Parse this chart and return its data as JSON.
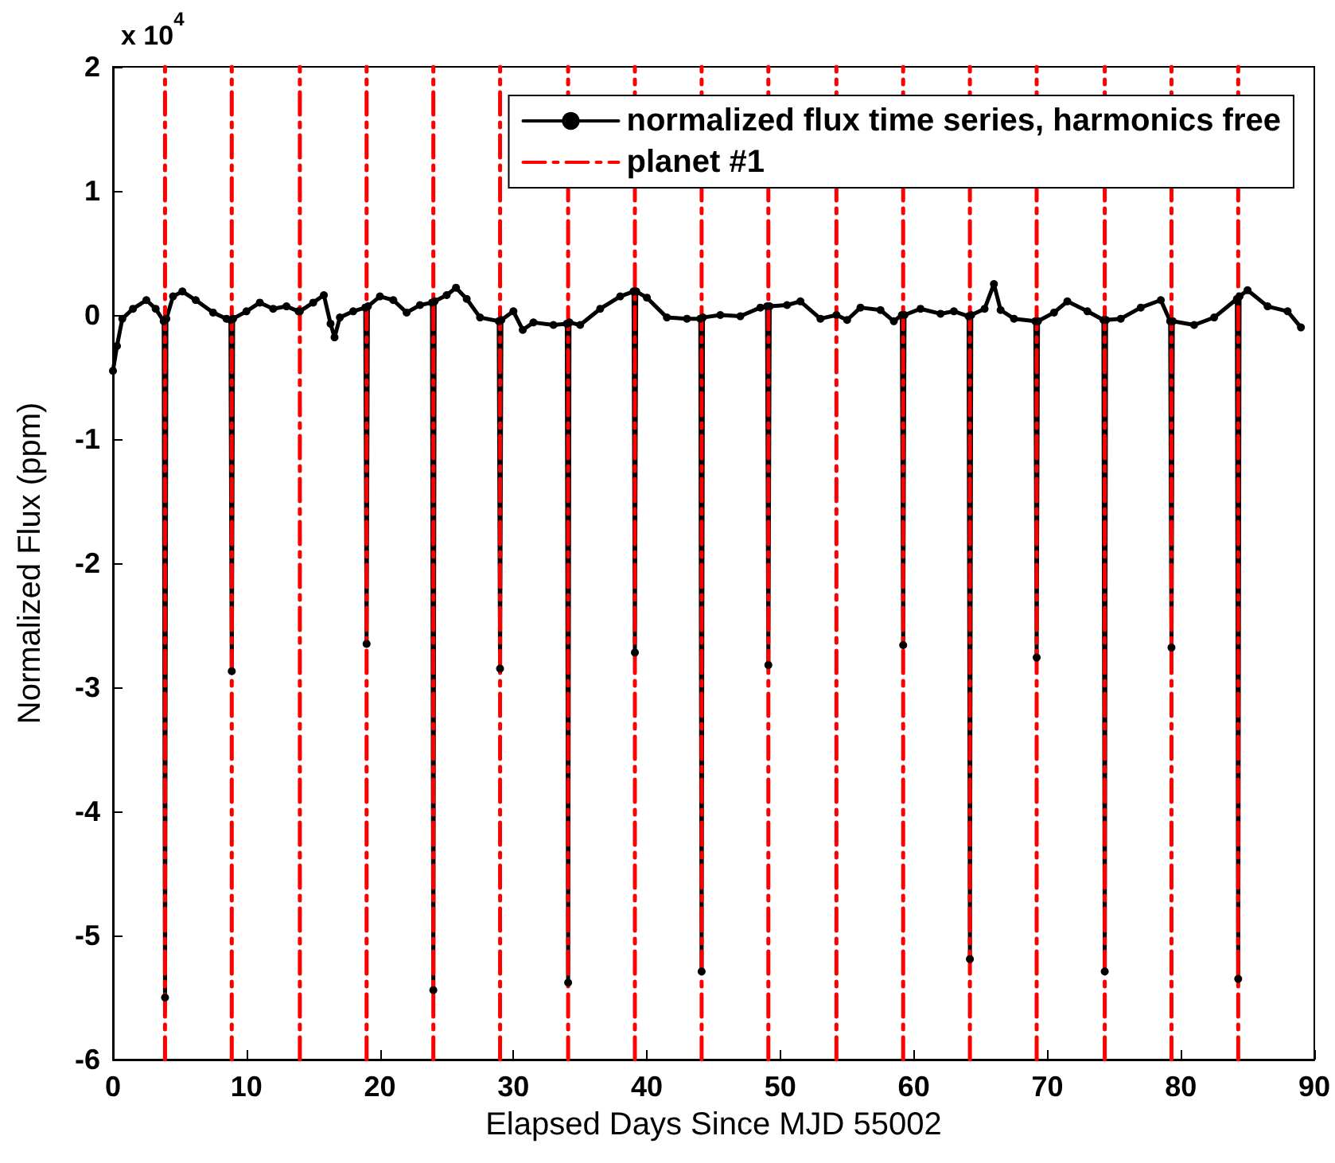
{
  "chart_data": {
    "type": "line",
    "xlabel": "Elapsed Days Since MJD 55002",
    "ylabel": "Normalized Flux (ppm)",
    "annotations": [
      "x 10$^{4}$"
    ],
    "xlim": [
      0,
      90
    ],
    "xticks": [
      0,
      10,
      20,
      30,
      40,
      50,
      60,
      70,
      80,
      90
    ],
    "ylim": [
      -6,
      2
    ],
    "yticks": [
      -6,
      -5,
      -4,
      -3,
      -2,
      -1,
      0,
      1,
      2
    ],
    "grid": false,
    "legend": "top right",
    "series": [
      {
        "name": "normalized flux time series, harmonics free",
        "color": "#000000",
        "marker": "circle",
        "line_style": "solid",
        "x": [
          0,
          0.3,
          0.7,
          1.5,
          2.5,
          3.2,
          3.8,
          3.9,
          4.0,
          4.5,
          5.2,
          6.2,
          7.5,
          8.5,
          8.8,
          8.9,
          9.0,
          10,
          11,
          12,
          13,
          13.9,
          14.0,
          15,
          15.8,
          16.3,
          16.6,
          17,
          18,
          18.9,
          19.0,
          19.1,
          20,
          21,
          22,
          23,
          23.9,
          24.0,
          24.1,
          25,
          25.7,
          26.5,
          27.5,
          28.9,
          29.0,
          29.1,
          30,
          30.7,
          31.5,
          33,
          34.0,
          34.1,
          34.2,
          35,
          36.5,
          38,
          39.0,
          39.1,
          39.2,
          40,
          41.5,
          43,
          44.0,
          44.1,
          44.2,
          45.5,
          47,
          48.5,
          49.0,
          49.1,
          49.2,
          50.5,
          51.5,
          53,
          54.2,
          55,
          56,
          57.5,
          58.5,
          59.1,
          59.2,
          59.3,
          60.5,
          62,
          63,
          64.1,
          64.2,
          64.3,
          65.3,
          66,
          66.5,
          67.5,
          69.1,
          69.2,
          69.3,
          70.5,
          71.5,
          73,
          74.2,
          74.3,
          74.4,
          75.5,
          77,
          78.5,
          79.2,
          79.3,
          79.4,
          81,
          82.5,
          84.2,
          84.3,
          84.4,
          85,
          86.5,
          88,
          89
        ],
        "values": [
          -0.45,
          -0.25,
          -0.03,
          0.05,
          0.12,
          0.05,
          -0.05,
          -5.5,
          -0.03,
          0.15,
          0.19,
          0.12,
          0.02,
          -0.03,
          -0.04,
          -2.87,
          -0.03,
          0.03,
          0.1,
          0.05,
          0.07,
          0.03,
          0.03,
          0.1,
          0.16,
          -0.07,
          -0.18,
          -0.02,
          0.03,
          0.06,
          -2.65,
          0.07,
          0.15,
          0.12,
          0.02,
          0.08,
          0.1,
          -5.44,
          0.11,
          0.16,
          0.22,
          0.13,
          -0.02,
          -0.05,
          -2.85,
          -0.04,
          0.03,
          -0.12,
          -0.06,
          -0.08,
          -0.07,
          -5.38,
          -0.06,
          -0.08,
          0.05,
          0.15,
          0.19,
          -2.72,
          0.19,
          0.14,
          -0.02,
          -0.03,
          -0.03,
          -5.29,
          -0.02,
          0,
          -0.01,
          0.06,
          0.07,
          -2.82,
          0.07,
          0.08,
          0.11,
          -0.03,
          0,
          -0.04,
          0.06,
          0.04,
          -0.05,
          0,
          -2.66,
          0,
          0.05,
          0.01,
          0.03,
          -0.01,
          -5.19,
          0,
          0.05,
          0.25,
          0.04,
          -0.03,
          -0.05,
          -2.76,
          -0.05,
          0.02,
          0.11,
          0.03,
          -0.04,
          -5.29,
          -0.04,
          -0.03,
          0.06,
          0.12,
          -0.05,
          -2.68,
          -0.05,
          -0.08,
          -0.02,
          0.13,
          -5.35,
          0.15,
          0.2,
          0.07,
          0.03,
          -0.1
        ]
      },
      {
        "name": "planet #1",
        "color": "#ff0000",
        "marker": "none",
        "line_style": "dashed",
        "x": [
          3.9,
          3.9,
          null,
          8.9,
          8.9,
          null,
          14.0,
          14.0,
          null,
          19.0,
          19.0,
          null,
          24.0,
          24.0,
          null,
          29.0,
          29.0,
          null,
          34.1,
          34.1,
          null,
          39.1,
          39.1,
          null,
          44.1,
          44.1,
          null,
          49.1,
          49.1,
          null,
          54.2,
          54.2,
          null,
          59.2,
          59.2,
          null,
          64.2,
          64.2,
          null,
          69.2,
          69.2,
          null,
          74.3,
          74.3,
          null,
          79.3,
          79.3,
          null,
          84.3,
          84.3
        ],
        "values": [
          -6,
          2,
          null,
          -6,
          2,
          null,
          -6,
          2,
          null,
          -6,
          2,
          null,
          -6,
          2,
          null,
          -6,
          2,
          null,
          -6,
          2,
          null,
          -6,
          2,
          null,
          -6,
          2,
          null,
          -6,
          2,
          null,
          -6,
          2,
          null,
          -6,
          2,
          null,
          -6,
          2,
          null,
          -6,
          2,
          null,
          -6,
          2,
          null,
          -6,
          2,
          null,
          -6,
          2
        ]
      }
    ]
  }
}
